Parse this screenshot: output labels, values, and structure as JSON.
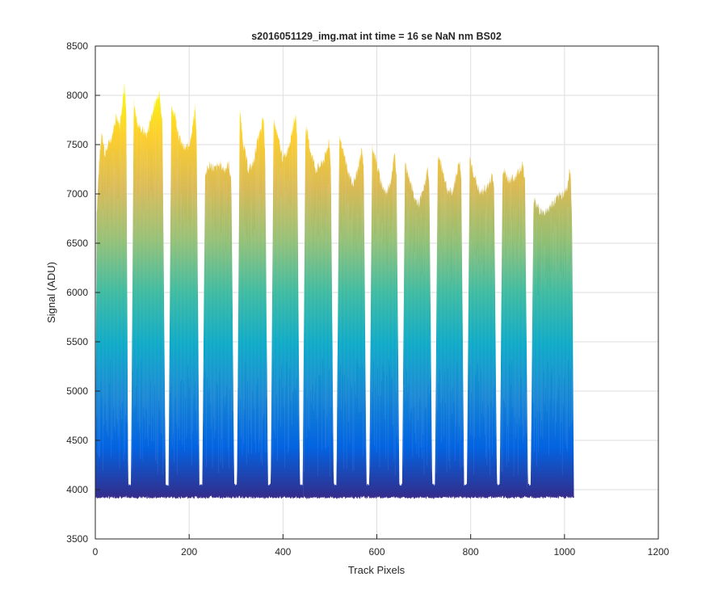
{
  "chart_data": {
    "type": "area",
    "title": "s2016051129_img.mat int time = 16 se  NaN nm BS02",
    "xlabel": "Track Pixels",
    "ylabel": "Signal (ADU)",
    "xlim": [
      0,
      1200
    ],
    "ylim": [
      3500,
      8500
    ],
    "xticks": [
      "0",
      "200",
      "400",
      "600",
      "800",
      "1000",
      "1200"
    ],
    "yticks": [
      "3500",
      "4000",
      "4500",
      "5000",
      "5500",
      "6000",
      "6500",
      "7000",
      "7500",
      "8000",
      "8500"
    ],
    "grid": true,
    "colormap": [
      "#352a87",
      "#0363e1",
      "#1485d4",
      "#06a7c6",
      "#38b99e",
      "#92bf73",
      "#d9ba56",
      "#fcce2e",
      "#f9fb0e"
    ],
    "baseline": 3930,
    "envelope": [
      [
        0,
        4300
      ],
      [
        3,
        6800
      ],
      [
        8,
        7300
      ],
      [
        14,
        7650
      ],
      [
        20,
        7400
      ],
      [
        28,
        7500
      ],
      [
        36,
        7600
      ],
      [
        45,
        7800
      ],
      [
        52,
        7700
      ],
      [
        58,
        7950
      ],
      [
        62,
        8100
      ],
      [
        66,
        7800
      ],
      [
        70,
        4050
      ],
      [
        76,
        4050
      ],
      [
        82,
        7950
      ],
      [
        90,
        7700
      ],
      [
        100,
        7650
      ],
      [
        110,
        7600
      ],
      [
        120,
        7800
      ],
      [
        130,
        7950
      ],
      [
        137,
        8050
      ],
      [
        143,
        7700
      ],
      [
        150,
        4050
      ],
      [
        156,
        4050
      ],
      [
        162,
        7900
      ],
      [
        170,
        7800
      ],
      [
        180,
        7550
      ],
      [
        190,
        7450
      ],
      [
        200,
        7500
      ],
      [
        208,
        7700
      ],
      [
        213,
        7900
      ],
      [
        216,
        7500
      ],
      [
        222,
        4050
      ],
      [
        228,
        4050
      ],
      [
        234,
        7200
      ],
      [
        245,
        7300
      ],
      [
        255,
        7250
      ],
      [
        265,
        7300
      ],
      [
        275,
        7250
      ],
      [
        285,
        7300
      ],
      [
        290,
        7100
      ],
      [
        296,
        4050
      ],
      [
        302,
        4050
      ],
      [
        308,
        7850
      ],
      [
        316,
        7500
      ],
      [
        326,
        7250
      ],
      [
        336,
        7300
      ],
      [
        346,
        7550
      ],
      [
        354,
        7650
      ],
      [
        358,
        7800
      ],
      [
        362,
        7400
      ],
      [
        368,
        4050
      ],
      [
        374,
        4050
      ],
      [
        380,
        7750
      ],
      [
        390,
        7550
      ],
      [
        400,
        7350
      ],
      [
        410,
        7450
      ],
      [
        420,
        7650
      ],
      [
        426,
        7800
      ],
      [
        430,
        7600
      ],
      [
        436,
        4050
      ],
      [
        442,
        4050
      ],
      [
        448,
        7700
      ],
      [
        458,
        7450
      ],
      [
        470,
        7250
      ],
      [
        482,
        7300
      ],
      [
        492,
        7400
      ],
      [
        498,
        7550
      ],
      [
        502,
        7300
      ],
      [
        508,
        4050
      ],
      [
        514,
        4050
      ],
      [
        520,
        7550
      ],
      [
        530,
        7400
      ],
      [
        540,
        7200
      ],
      [
        550,
        7100
      ],
      [
        560,
        7250
      ],
      [
        568,
        7450
      ],
      [
        572,
        7300
      ],
      [
        578,
        4050
      ],
      [
        584,
        4050
      ],
      [
        590,
        7500
      ],
      [
        600,
        7300
      ],
      [
        610,
        7100
      ],
      [
        620,
        7000
      ],
      [
        630,
        7150
      ],
      [
        638,
        7400
      ],
      [
        642,
        7200
      ],
      [
        648,
        4050
      ],
      [
        654,
        4050
      ],
      [
        660,
        7300
      ],
      [
        670,
        7150
      ],
      [
        680,
        6950
      ],
      [
        690,
        6900
      ],
      [
        700,
        7050
      ],
      [
        708,
        7250
      ],
      [
        712,
        7100
      ],
      [
        718,
        4050
      ],
      [
        724,
        4050
      ],
      [
        730,
        7400
      ],
      [
        740,
        7250
      ],
      [
        750,
        7050
      ],
      [
        760,
        7000
      ],
      [
        770,
        7200
      ],
      [
        776,
        7350
      ],
      [
        780,
        7150
      ],
      [
        786,
        4050
      ],
      [
        792,
        4050
      ],
      [
        798,
        7350
      ],
      [
        810,
        7150
      ],
      [
        820,
        7000
      ],
      [
        830,
        7050
      ],
      [
        840,
        7100
      ],
      [
        846,
        7200
      ],
      [
        850,
        7050
      ],
      [
        856,
        4050
      ],
      [
        862,
        4050
      ],
      [
        868,
        7250
      ],
      [
        880,
        7150
      ],
      [
        892,
        7150
      ],
      [
        904,
        7250
      ],
      [
        912,
        7300
      ],
      [
        916,
        7100
      ],
      [
        922,
        4050
      ],
      [
        928,
        4050
      ],
      [
        934,
        6950
      ],
      [
        945,
        6850
      ],
      [
        955,
        6800
      ],
      [
        965,
        6850
      ],
      [
        975,
        6900
      ],
      [
        985,
        6950
      ],
      [
        995,
        7000
      ],
      [
        1005,
        7050
      ],
      [
        1012,
        7250
      ],
      [
        1016,
        6800
      ],
      [
        1020,
        4000
      ]
    ]
  }
}
